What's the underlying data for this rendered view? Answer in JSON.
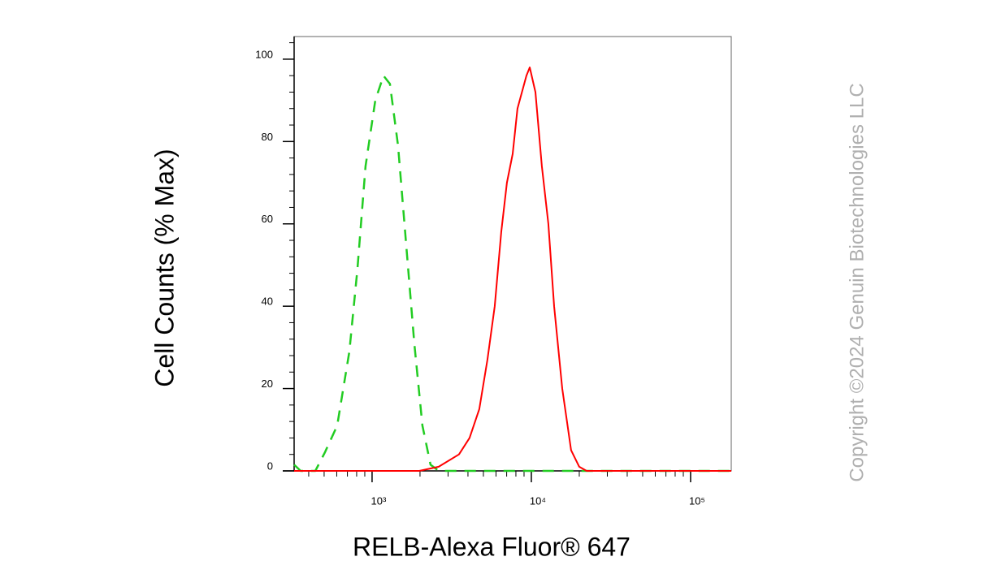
{
  "chart_data": {
    "type": "line",
    "y_label": "Cell Counts (% Max)",
    "x_label": "RELB-Alexa Fluor® 647",
    "watermark": "Copyright ©2024 Genuin Biotechnologies LLC",
    "x_scale": "log",
    "xlim": [
      324,
      180000
    ],
    "ylim": [
      0,
      105.5
    ],
    "xticks": [
      {
        "value": 1000,
        "label": "10³"
      },
      {
        "value": 10000,
        "label": "10⁴"
      },
      {
        "value": 100000,
        "label": "10⁵"
      }
    ],
    "xminorticks": [
      400,
      500,
      600,
      700,
      800,
      900,
      2000,
      3000,
      4000,
      5000,
      6000,
      7000,
      8000,
      9000,
      20000,
      30000,
      40000,
      50000,
      60000,
      70000,
      80000,
      90000
    ],
    "yticks": [
      0,
      20,
      40,
      60,
      80,
      100
    ],
    "yminorticks": [
      4,
      8,
      12,
      16,
      24,
      28,
      32,
      36,
      44,
      48,
      52,
      56,
      64,
      68,
      72,
      76,
      84,
      88,
      92,
      96,
      104
    ],
    "series": [
      {
        "color": "#22cc22",
        "dashed": true,
        "x": [
          324,
          356,
          440,
          506,
          604,
          720,
          809,
          910,
          1048,
          1179,
          1295,
          1456,
          1637,
          1842,
          2071,
          2328,
          2619,
          10000,
          50000,
          180000
        ],
        "values": [
          1.5,
          0,
          0,
          4.5,
          11,
          29,
          49,
          74,
          90,
          96,
          94,
          79,
          55,
          31,
          11,
          1.5,
          0,
          0,
          0,
          0
        ]
      },
      {
        "color": "#ff0000",
        "dashed": false,
        "x": [
          324,
          1977,
          2619,
          3515,
          4094,
          4710,
          5297,
          5888,
          6471,
          7025,
          7640,
          8185,
          9317,
          9772,
          10610,
          11640,
          12790,
          13900,
          15630,
          17780,
          19990,
          22230,
          180000
        ],
        "values": [
          0,
          0,
          1,
          4,
          8,
          15,
          27,
          40,
          58,
          70,
          77,
          88,
          96,
          98,
          92,
          74,
          60,
          40,
          20,
          5,
          1,
          0,
          0
        ]
      }
    ]
  }
}
